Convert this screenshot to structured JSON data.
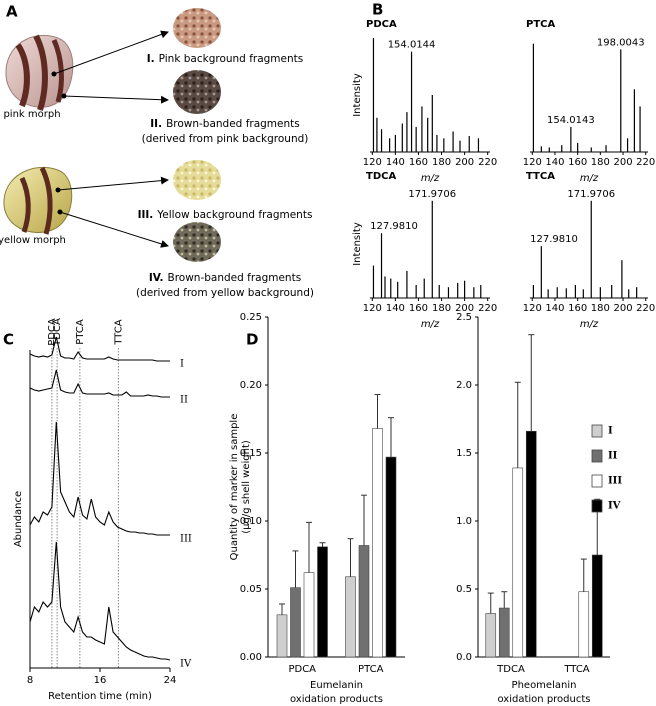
{
  "panel_labels": [
    "A",
    "B",
    "C",
    "D"
  ],
  "panel_a": {
    "morphs": [
      "pink morph",
      "yellow morph"
    ],
    "fragments": [
      {
        "numeral": "I.",
        "lines": [
          "Pink background fragments"
        ]
      },
      {
        "numeral": "II.",
        "lines": [
          "Brown-banded fragments",
          "(derived from pink background)"
        ]
      },
      {
        "numeral": "III.",
        "lines": [
          "Yellow background fragments"
        ]
      },
      {
        "numeral": "IV.",
        "lines": [
          "Brown-banded fragments",
          "(derived from yellow background)"
        ]
      }
    ]
  },
  "chart_data": [
    {
      "type": "spectrum",
      "title": "PDCA",
      "xlabel": "m/z",
      "ylabel": "Intensity",
      "color": "#000",
      "x": [
        121,
        124,
        128,
        135,
        140,
        146,
        150,
        154.0144,
        158,
        163,
        168,
        172,
        176,
        182,
        190,
        196,
        204,
        212
      ],
      "values": [
        100,
        30,
        20,
        12,
        15,
        25,
        35,
        88,
        22,
        40,
        30,
        50,
        15,
        12,
        18,
        10,
        14,
        12
      ],
      "x_labels": [
        null,
        null,
        null,
        null,
        null,
        null,
        null,
        "154.0144",
        null,
        null,
        null,
        null,
        null,
        null,
        null,
        null,
        null,
        null
      ],
      "xlim": [
        118,
        222
      ],
      "xticks": [
        120,
        140,
        160,
        180,
        200,
        220
      ],
      "ylim": [
        0,
        100
      ]
    },
    {
      "type": "spectrum",
      "title": "PTCA",
      "xlabel": "m/z",
      "color": "#000",
      "x": [
        121,
        128,
        135,
        146,
        154.0143,
        160,
        172,
        185,
        198.0043,
        204,
        210,
        215
      ],
      "values": [
        95,
        5,
        4,
        6,
        22,
        8,
        4,
        6,
        90,
        12,
        55,
        40
      ],
      "x_labels": [
        null,
        null,
        null,
        null,
        "154.0143",
        null,
        null,
        null,
        "198.0043",
        null,
        null,
        null
      ],
      "xlim": [
        118,
        222
      ],
      "xticks": [
        120,
        140,
        160,
        180,
        200,
        220
      ],
      "ylim": [
        0,
        100
      ]
    },
    {
      "type": "spectrum",
      "title": "TDCA",
      "xlabel": "m/z",
      "ylabel": "Intensity",
      "color": "#000",
      "x": [
        121,
        127.981,
        131,
        136,
        142,
        150,
        158,
        165,
        171.9706,
        178,
        186,
        194,
        200,
        208,
        214
      ],
      "values": [
        30,
        60,
        20,
        18,
        15,
        25,
        12,
        18,
        90,
        12,
        10,
        14,
        16,
        10,
        12
      ],
      "x_labels": [
        null,
        "127.9810",
        null,
        null,
        null,
        null,
        null,
        null,
        "171.9706",
        null,
        null,
        null,
        null,
        null,
        null
      ],
      "xlim": [
        118,
        222
      ],
      "xticks": [
        120,
        140,
        160,
        180,
        200,
        220
      ],
      "ylim": [
        0,
        100
      ]
    },
    {
      "type": "spectrum",
      "title": "TTCA",
      "xlabel": "m/z",
      "color": "#000",
      "x": [
        121,
        127.981,
        134,
        142,
        150,
        158,
        165,
        171.9706,
        180,
        190,
        199,
        205,
        212
      ],
      "values": [
        12,
        48,
        8,
        10,
        9,
        12,
        8,
        90,
        10,
        12,
        35,
        8,
        10
      ],
      "x_labels": [
        null,
        "127.9810",
        null,
        null,
        null,
        null,
        null,
        "171.9706",
        null,
        null,
        null,
        null,
        null
      ],
      "xlim": [
        118,
        222
      ],
      "xticks": [
        120,
        140,
        160,
        180,
        200,
        220
      ],
      "ylim": [
        0,
        100
      ]
    },
    {
      "type": "chromatogram",
      "xlabel": "Retention time (min)",
      "ylabel": "Abundance",
      "xlim": [
        8,
        24
      ],
      "xticks": [
        8,
        16,
        24
      ],
      "markers": [
        {
          "name": "PDCA",
          "x": 10.5
        },
        {
          "name": "TDCA",
          "x": 11.1
        },
        {
          "name": "PTCA",
          "x": 13.7
        },
        {
          "name": "TTCA",
          "x": 18.1
        }
      ],
      "x": [
        8,
        8.5,
        9,
        9.5,
        10,
        10.5,
        11,
        11.5,
        12,
        12.5,
        13,
        13.5,
        14,
        14.5,
        15,
        15.5,
        16,
        16.5,
        17,
        17.5,
        18,
        18.5,
        19,
        19.5,
        20,
        20.5,
        21,
        21.5,
        22,
        22.5,
        23,
        23.5,
        24
      ],
      "series": [
        {
          "name": "I",
          "color": "#000",
          "values": [
            8,
            6,
            5,
            6,
            5,
            7,
            25,
            6,
            4,
            4,
            3,
            10,
            4,
            3,
            3,
            3,
            3,
            3,
            5,
            3,
            2,
            2,
            2,
            2,
            2,
            2,
            2,
            2,
            2,
            1,
            1,
            1,
            1
          ]
        },
        {
          "name": "II",
          "color": "#000",
          "values": [
            10,
            8,
            7,
            8,
            9,
            10,
            28,
            8,
            6,
            5,
            5,
            14,
            5,
            4,
            4,
            4,
            4,
            4,
            5,
            3,
            3,
            3,
            6,
            2,
            2,
            2,
            2,
            3,
            2,
            2,
            1,
            1,
            1
          ]
        },
        {
          "name": "III",
          "color": "#000",
          "values": [
            12,
            20,
            15,
            25,
            22,
            30,
            115,
            45,
            35,
            25,
            20,
            40,
            22,
            18,
            38,
            20,
            15,
            12,
            25,
            15,
            10,
            8,
            6,
            5,
            5,
            4,
            4,
            3,
            3,
            2,
            2,
            2,
            2
          ]
        },
        {
          "name": "IV",
          "color": "#000",
          "values": [
            40,
            55,
            50,
            60,
            55,
            60,
            120,
            55,
            40,
            35,
            30,
            45,
            30,
            25,
            25,
            22,
            20,
            18,
            55,
            30,
            25,
            20,
            15,
            12,
            10,
            8,
            6,
            5,
            5,
            4,
            3,
            3,
            2
          ]
        }
      ]
    },
    {
      "type": "bar",
      "xlabel": [
        "Eumelanin",
        "oxidation products"
      ],
      "ylabel": [
        "Quantity of marker in sample",
        "(µg/g shell weight)"
      ],
      "categories": [
        "PDCA",
        "PTCA"
      ],
      "ylim": [
        0,
        0.25
      ],
      "yticks": [
        {
          "value": 0,
          "label": "0.00"
        },
        0.05,
        {
          "value": 0.1,
          "label": "0.10"
        },
        0.15,
        {
          "value": 0.2,
          "label": "0.20"
        },
        0.25
      ],
      "series": [
        {
          "name": "I",
          "color": "#cfcfcf",
          "values": [
            0.031,
            0.059
          ],
          "errors": [
            0.008,
            0.028
          ]
        },
        {
          "name": "II",
          "color": "#707070",
          "values": [
            0.051,
            0.082
          ],
          "errors": [
            0.027,
            0.037
          ]
        },
        {
          "name": "III",
          "color": "#ffffff",
          "values": [
            0.062,
            0.168
          ],
          "errors": [
            0.037,
            0.025
          ]
        },
        {
          "name": "IV",
          "color": "#000000",
          "values": [
            0.081,
            0.147
          ],
          "errors": [
            0.003,
            0.029
          ]
        }
      ]
    },
    {
      "type": "bar",
      "xlabel": [
        "Pheomelanin",
        "oxidation products"
      ],
      "legend": "upper right",
      "categories": [
        "TDCA",
        "TTCA"
      ],
      "ylim": [
        0,
        2.5
      ],
      "yticks": [
        {
          "value": 0,
          "label": "0.0"
        },
        0.5,
        {
          "value": 1,
          "label": "1.0"
        },
        1.5,
        {
          "value": 2,
          "label": "2.0"
        },
        2.5
      ],
      "series": [
        {
          "name": "I",
          "color": "#cfcfcf",
          "values": [
            0.32,
            null
          ],
          "errors": [
            0.15,
            null
          ]
        },
        {
          "name": "II",
          "color": "#707070",
          "values": [
            0.36,
            null
          ],
          "errors": [
            0.12,
            null
          ]
        },
        {
          "name": "III",
          "color": "#ffffff",
          "values": [
            1.39,
            0.48
          ],
          "errors": [
            0.63,
            0.24
          ]
        },
        {
          "name": "IV",
          "color": "#000000",
          "values": [
            1.66,
            0.75
          ],
          "errors": [
            0.71,
            0.41
          ]
        }
      ]
    }
  ]
}
